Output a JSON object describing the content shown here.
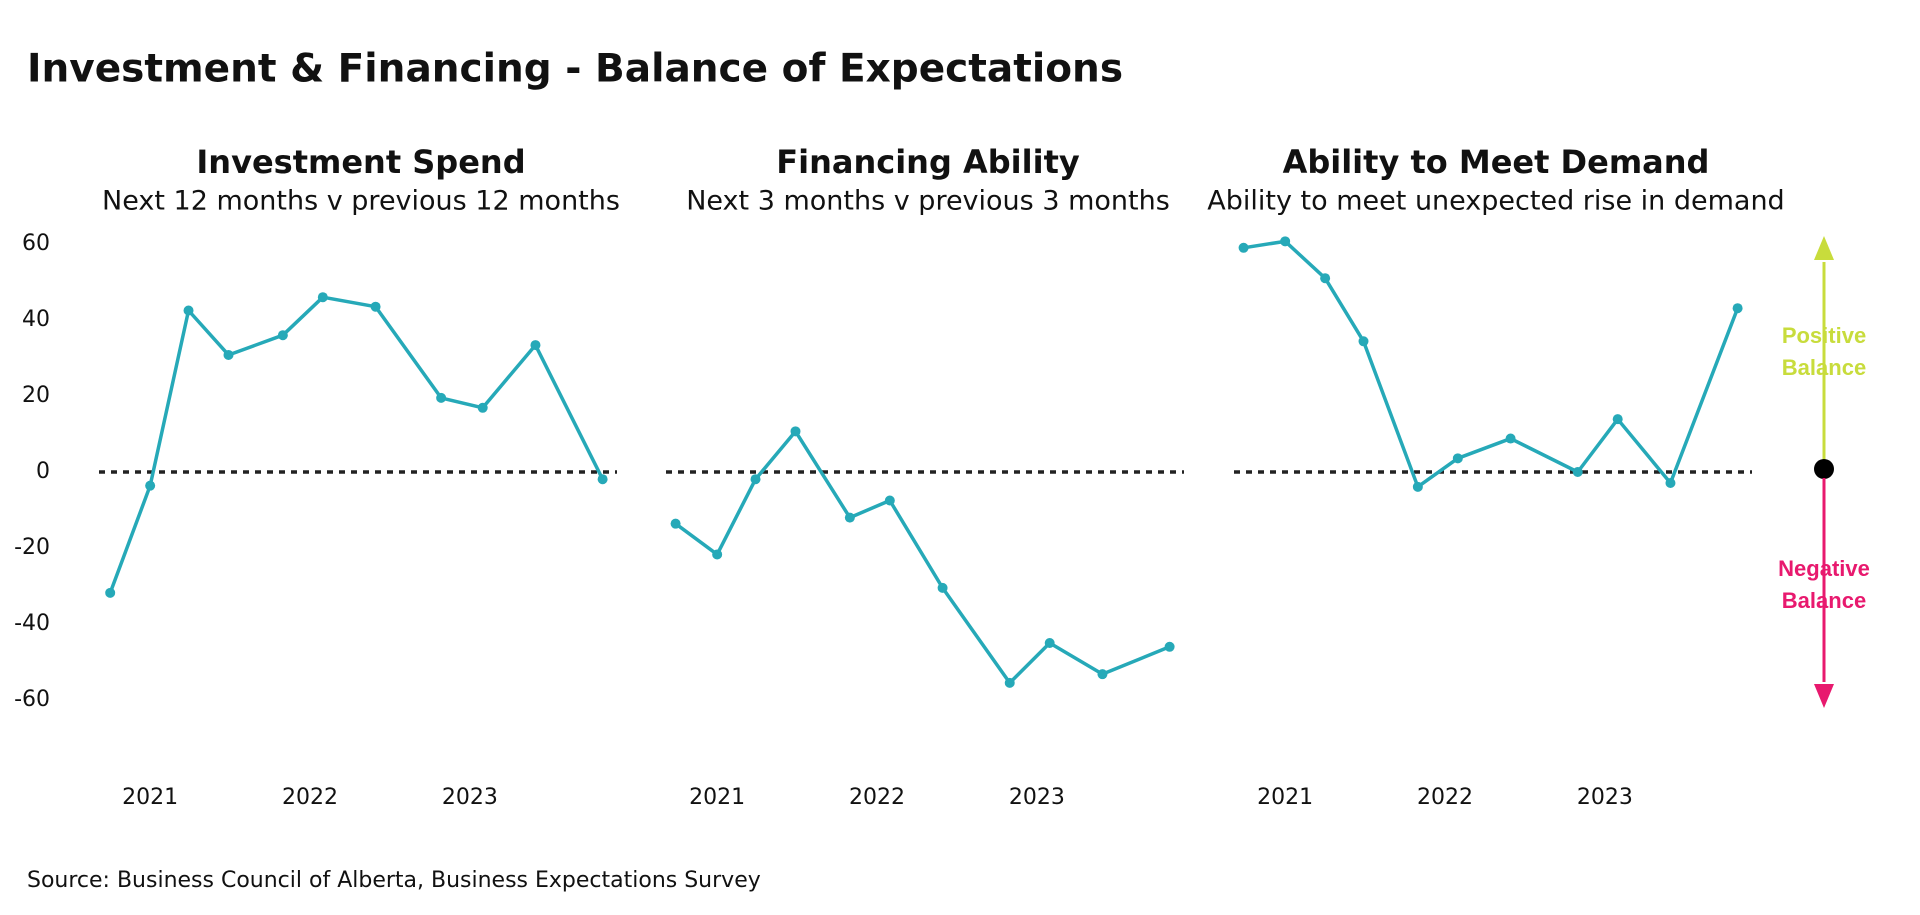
{
  "title": "Investment & Financing - Balance of Expectations",
  "source": "Source: Business Council of Alberta, Business Expectations Survey",
  "annotations": {
    "positive": "Positive Balance",
    "negative": "Negative Balance"
  },
  "chart_data": [
    {
      "type": "line",
      "title": "Investment Spend",
      "subtitle": "Next 12 months v previous 12 months",
      "x": [
        2020.75,
        2021.0,
        2021.24,
        2021.49,
        2021.83,
        2022.08,
        2022.41,
        2022.82,
        2023.08,
        2023.41,
        2023.83
      ],
      "series": [
        {
          "color": "#26a9b8",
          "values": [
            -31.8,
            -3.6,
            42.5,
            30.8,
            36,
            46,
            43.5,
            19.5,
            16.9,
            33.4,
            -1.9
          ]
        }
      ],
      "xlim": [
        2020.68,
        2023.92
      ],
      "xticks": [
        2021,
        2022,
        2023
      ],
      "ylim": [
        -70,
        70
      ],
      "yticks": [
        60,
        40,
        20,
        0,
        -20,
        -40,
        -60
      ],
      "reference_line": 0
    },
    {
      "type": "line",
      "title": "Financing Ability",
      "subtitle": "Next 3 months v previous 3 months",
      "x": [
        2020.74,
        2021.0,
        2021.24,
        2021.49,
        2021.83,
        2022.08,
        2022.41,
        2022.83,
        2023.08,
        2023.41,
        2023.83
      ],
      "series": [
        {
          "color": "#26a9b8",
          "values": [
            -13.6,
            -21.7,
            -1.9,
            10.7,
            -12,
            -7.5,
            -30.5,
            -55.5,
            -45,
            -53.2,
            -46
          ]
        }
      ],
      "xlim": [
        2020.68,
        2023.92
      ],
      "xticks": [
        2021,
        2022,
        2023
      ],
      "ylim": [
        -70,
        70
      ],
      "reference_line": 0
    },
    {
      "type": "line",
      "title": "Ability to Meet Demand",
      "subtitle": "Ability to meet unexpected rise in demand",
      "x": [
        2020.74,
        2021.0,
        2021.25,
        2021.49,
        2021.83,
        2022.08,
        2022.41,
        2022.83,
        2023.08,
        2023.41,
        2023.83
      ],
      "series": [
        {
          "color": "#26a9b8",
          "values": [
            59,
            60.7,
            51,
            34.4,
            -3.9,
            3.6,
            8.8,
            0,
            13.9,
            -2.9,
            43.1
          ]
        }
      ],
      "xlim": [
        2020.68,
        2023.92
      ],
      "xticks": [
        2021,
        2022,
        2023
      ],
      "ylim": [
        -70,
        70
      ],
      "reference_line": 0
    }
  ]
}
